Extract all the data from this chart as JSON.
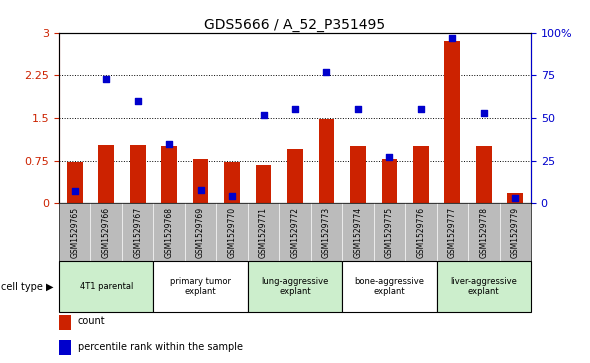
{
  "title": "GDS5666 / A_52_P351495",
  "samples": [
    "GSM1529765",
    "GSM1529766",
    "GSM1529767",
    "GSM1529768",
    "GSM1529769",
    "GSM1529770",
    "GSM1529771",
    "GSM1529772",
    "GSM1529773",
    "GSM1529774",
    "GSM1529775",
    "GSM1529776",
    "GSM1529777",
    "GSM1529778",
    "GSM1529779"
  ],
  "counts": [
    0.72,
    1.02,
    1.02,
    1.0,
    0.78,
    0.72,
    0.68,
    0.95,
    1.48,
    1.0,
    0.77,
    1.0,
    2.85,
    1.0,
    0.18
  ],
  "percentile_ranks_pct": [
    7,
    73,
    60,
    35,
    8,
    4,
    52,
    55,
    77,
    55,
    27,
    55,
    97,
    53,
    3
  ],
  "cell_types": [
    {
      "label": "4T1 parental",
      "start": 0,
      "end": 2,
      "color": "#cceecc"
    },
    {
      "label": "primary tumor\nexplant",
      "start": 3,
      "end": 5,
      "color": "#ffffff"
    },
    {
      "label": "lung-aggressive\nexplant",
      "start": 6,
      "end": 8,
      "color": "#cceecc"
    },
    {
      "label": "bone-aggressive\nexplant",
      "start": 9,
      "end": 11,
      "color": "#ffffff"
    },
    {
      "label": "liver-aggressive\nexplant",
      "start": 12,
      "end": 14,
      "color": "#cceecc"
    }
  ],
  "bar_color": "#cc2200",
  "dot_color": "#0000cc",
  "ylim_left": [
    0,
    3
  ],
  "ylim_right": [
    0,
    100
  ],
  "yticks_left": [
    0,
    0.75,
    1.5,
    2.25,
    3
  ],
  "yticks_right": [
    0,
    25,
    50,
    75,
    100
  ],
  "grid_lines": [
    0.75,
    1.5,
    2.25
  ],
  "bar_width": 0.5,
  "legend_count_label": "count",
  "legend_pct_label": "percentile rank within the sample",
  "cell_type_label": "cell type",
  "bg_color_plot": "#ffffff",
  "bg_color_sample_row": "#bbbbbb",
  "right_axis_color": "#0000cc",
  "left_axis_color": "#cc2200"
}
